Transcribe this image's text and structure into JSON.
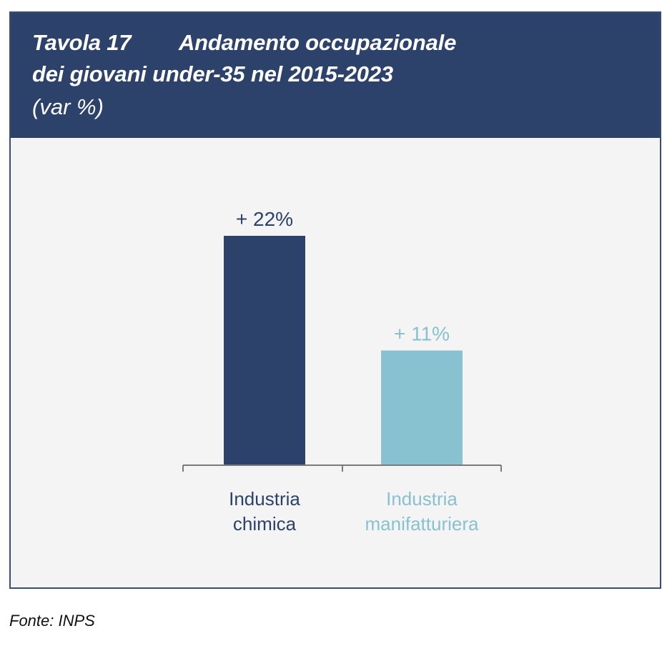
{
  "header": {
    "table_number": "Tavola 17",
    "title_line1": "Andamento occupazionale",
    "title_line2": "dei giovani under-35 nel 2015-2023",
    "subtitle": "(var %)"
  },
  "source": "Fonte: INPS",
  "colors": {
    "header_bg": "#2c426b",
    "panel_bg": "#f4f4f4",
    "series_dark": "#2c426b",
    "series_light": "#88c1cf",
    "axis": "#7a7a7a"
  },
  "chart_data": {
    "type": "bar",
    "title": "Tavola 17 Andamento occupazionale dei giovani under-35 nel 2015-2023",
    "subtitle": "(var %)",
    "xlabel": "",
    "ylabel": "",
    "ylim": [
      0,
      22
    ],
    "grid": false,
    "categories": [
      {
        "lines": [
          "Industria",
          "chimica"
        ],
        "color": "#2c426b"
      },
      {
        "lines": [
          "Industria",
          "manifatturiera"
        ],
        "color": "#88c1cf"
      }
    ],
    "values": [
      22,
      11
    ],
    "data_labels": [
      "+ 22%",
      "+ 11%"
    ]
  }
}
